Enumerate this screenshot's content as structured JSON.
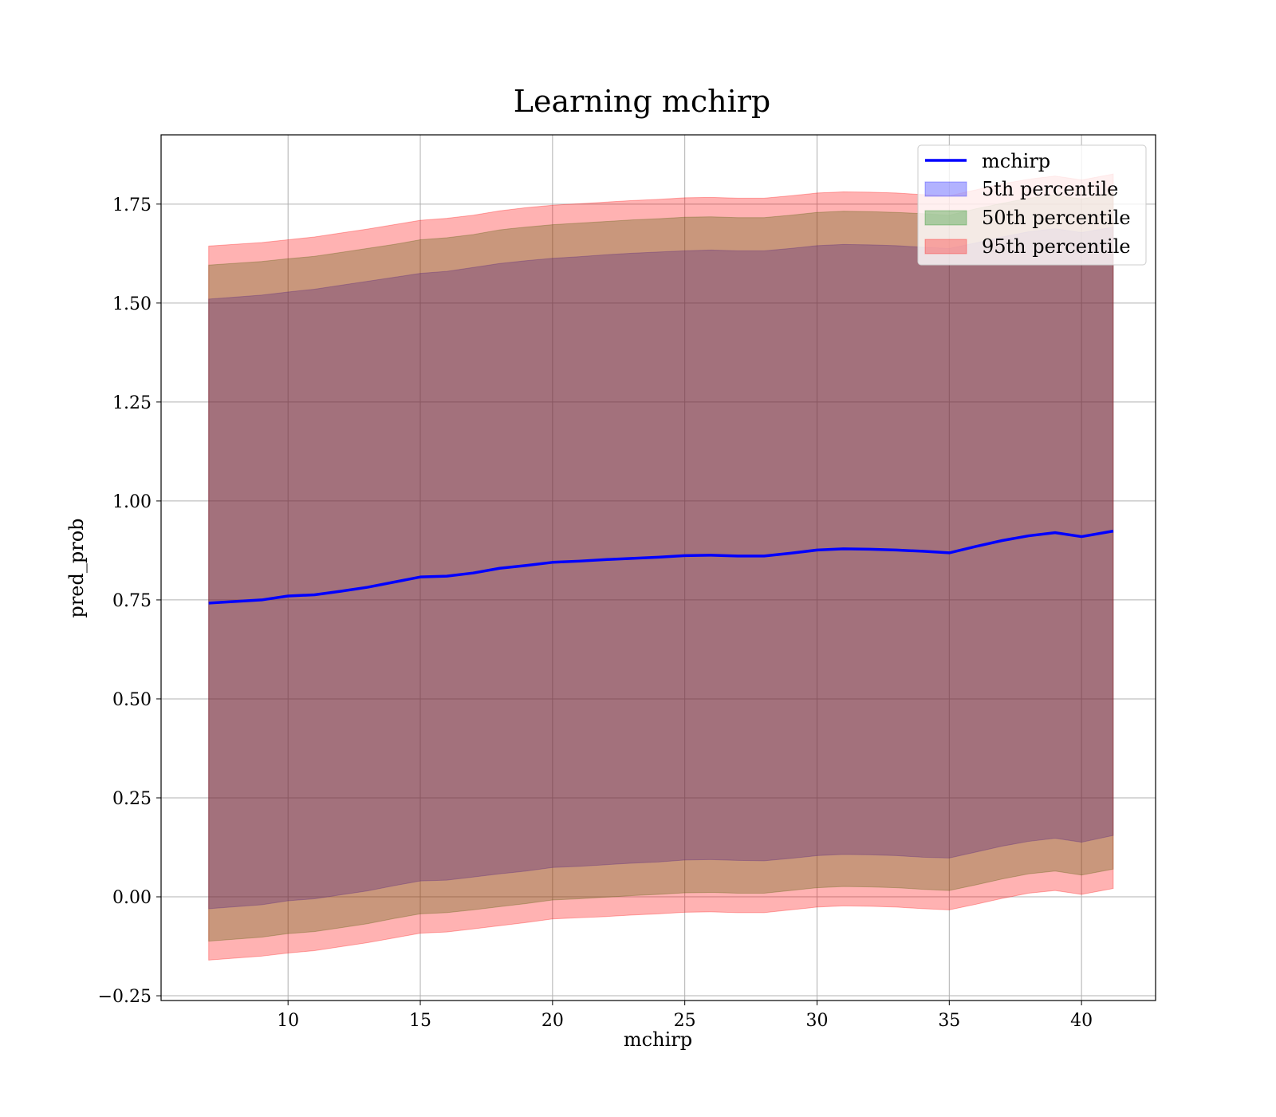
{
  "chart_data": {
    "type": "line",
    "title": "Learning mchirp",
    "xlabel": "mchirp",
    "ylabel": "pred_prob",
    "xlim": [
      5.2,
      42.8
    ],
    "ylim": [
      -0.262,
      1.925
    ],
    "xticks": [
      10,
      15,
      20,
      25,
      30,
      35,
      40
    ],
    "xtick_labels": [
      "10",
      "15",
      "20",
      "25",
      "30",
      "35",
      "40"
    ],
    "yticks": [
      -0.25,
      0,
      0.25,
      0.5,
      0.75,
      1.0,
      1.25,
      1.5,
      1.75
    ],
    "ytick_labels": [
      "−0.25",
      "0.00",
      "0.25",
      "0.50",
      "0.75",
      "1.00",
      "1.25",
      "1.50",
      "1.75"
    ],
    "grid": true,
    "legend_position": "top-right",
    "x": [
      7,
      9,
      10,
      11,
      12,
      13,
      14,
      15,
      16,
      17,
      18,
      19,
      20,
      21,
      22,
      23,
      24,
      25,
      26,
      27,
      28,
      29,
      30,
      31,
      32,
      33,
      34,
      35,
      36,
      37,
      38,
      39,
      40,
      41.2
    ],
    "series": [
      {
        "name": "mchirp",
        "kind": "line",
        "color": "#0000ff",
        "values": [
          0.742,
          0.75,
          0.76,
          0.763,
          0.772,
          0.782,
          0.795,
          0.808,
          0.81,
          0.818,
          0.83,
          0.837,
          0.845,
          0.848,
          0.852,
          0.855,
          0.858,
          0.862,
          0.863,
          0.861,
          0.861,
          0.868,
          0.876,
          0.879,
          0.878,
          0.876,
          0.873,
          0.869,
          0.885,
          0.9,
          0.912,
          0.92,
          0.91,
          0.924
        ]
      },
      {
        "name": "5th percentile",
        "kind": "band",
        "color": "#0000ff",
        "lower": [
          -0.03,
          -0.02,
          -0.01,
          -0.005,
          0.005,
          0.015,
          0.028,
          0.04,
          0.042,
          0.05,
          0.058,
          0.065,
          0.074,
          0.077,
          0.081,
          0.085,
          0.088,
          0.093,
          0.094,
          0.092,
          0.091,
          0.097,
          0.104,
          0.107,
          0.106,
          0.104,
          0.1,
          0.098,
          0.113,
          0.128,
          0.14,
          0.148,
          0.138,
          0.155
        ],
        "upper": [
          1.51,
          1.52,
          1.528,
          1.535,
          1.545,
          1.555,
          1.565,
          1.575,
          1.58,
          1.59,
          1.6,
          1.607,
          1.613,
          1.617,
          1.622,
          1.626,
          1.629,
          1.632,
          1.634,
          1.632,
          1.632,
          1.638,
          1.645,
          1.648,
          1.647,
          1.645,
          1.641,
          1.638,
          1.652,
          1.667,
          1.68,
          1.688,
          1.678,
          1.692
        ]
      },
      {
        "name": "50th percentile",
        "kind": "band",
        "color": "#008000",
        "lower": [
          -0.112,
          -0.102,
          -0.093,
          -0.088,
          -0.078,
          -0.068,
          -0.055,
          -0.043,
          -0.04,
          -0.033,
          -0.025,
          -0.017,
          -0.008,
          -0.005,
          -0.001,
          0.003,
          0.006,
          0.01,
          0.011,
          0.009,
          0.009,
          0.016,
          0.023,
          0.026,
          0.025,
          0.023,
          0.019,
          0.016,
          0.03,
          0.045,
          0.058,
          0.065,
          0.055,
          0.07
        ],
        "upper": [
          1.596,
          1.605,
          1.612,
          1.618,
          1.628,
          1.638,
          1.648,
          1.66,
          1.665,
          1.673,
          1.685,
          1.692,
          1.698,
          1.702,
          1.706,
          1.71,
          1.713,
          1.717,
          1.718,
          1.716,
          1.716,
          1.722,
          1.729,
          1.732,
          1.731,
          1.729,
          1.726,
          1.722,
          1.738,
          1.752,
          1.765,
          1.773,
          1.763,
          1.778
        ]
      },
      {
        "name": "95th percentile",
        "kind": "band",
        "color": "#ff0000",
        "lower": [
          -0.16,
          -0.15,
          -0.142,
          -0.136,
          -0.126,
          -0.116,
          -0.104,
          -0.092,
          -0.089,
          -0.081,
          -0.073,
          -0.065,
          -0.056,
          -0.053,
          -0.05,
          -0.046,
          -0.043,
          -0.039,
          -0.038,
          -0.04,
          -0.04,
          -0.033,
          -0.026,
          -0.023,
          -0.024,
          -0.026,
          -0.03,
          -0.033,
          -0.019,
          -0.004,
          0.009,
          0.016,
          0.006,
          0.021
        ],
        "upper": [
          1.644,
          1.653,
          1.66,
          1.667,
          1.677,
          1.687,
          1.698,
          1.709,
          1.714,
          1.722,
          1.733,
          1.741,
          1.747,
          1.751,
          1.755,
          1.759,
          1.762,
          1.766,
          1.767,
          1.765,
          1.765,
          1.771,
          1.778,
          1.781,
          1.78,
          1.778,
          1.774,
          1.771,
          1.786,
          1.801,
          1.813,
          1.821,
          1.811,
          1.826
        ]
      }
    ]
  }
}
